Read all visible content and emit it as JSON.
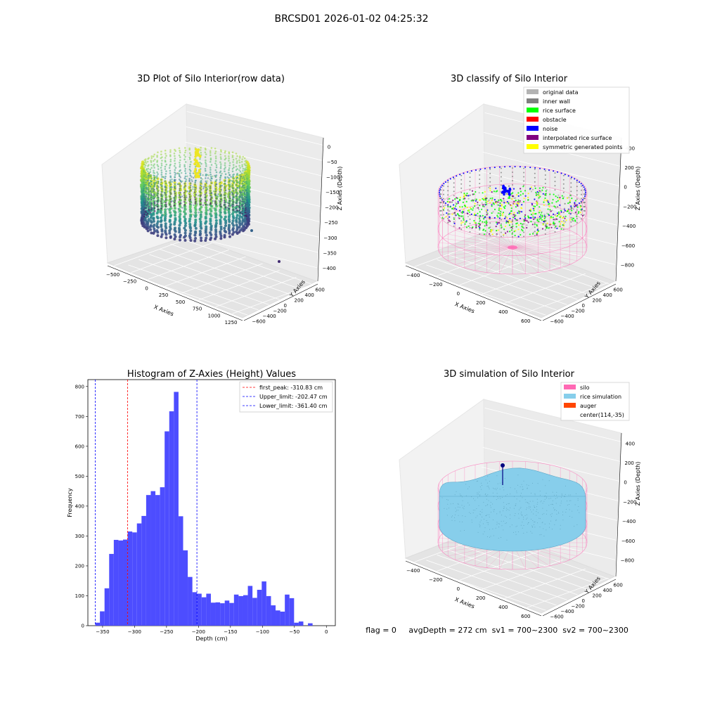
{
  "figure": {
    "suptitle": "BRCSD01 2026-01-02 04:25:32",
    "footer": "flag = 0     avgDepth = 272 cm  sv1 = 700~2300  sv2 = 700~2300"
  },
  "colors": {
    "hist_bar": "#4d4dff",
    "peak_line": "#ff0000",
    "limit_line": "#0000ff",
    "viridis_dark": "#440154",
    "viridis_mid": "#21918c",
    "viridis_light": "#bddf26",
    "silo_pink": "#ff69b4",
    "rice_sky": "#87ceeb",
    "noise_blue": "#0000ff",
    "rice_green": "#00ff00"
  },
  "chart_data": [
    {
      "type": "scatter",
      "title": "3D Plot of Silo Interior(row data)",
      "projection": "3d",
      "xlabel": "X Axies",
      "ylabel": "Y Axies",
      "zlabel": "Z Axies (Depth)",
      "x_ticks": [
        "−500",
        "−250",
        "0",
        "250",
        "500",
        "750",
        "1000",
        "1250"
      ],
      "y_ticks": [
        "−600",
        "−400",
        "−200",
        "0",
        "200",
        "400",
        "600"
      ],
      "z_ticks": [
        "0",
        "−50",
        "−100",
        "−150",
        "−200",
        "−250",
        "−300",
        "−350",
        "−400"
      ],
      "xlim": [
        -600,
        1300
      ],
      "ylim": [
        -650,
        650
      ],
      "zlim": [
        -420,
        10
      ],
      "colormap": "viridis",
      "grid": true,
      "outliers": [
        {
          "x": 1000,
          "y": 0,
          "z": -380
        },
        {
          "x": 1250,
          "y": 400,
          "z": -350
        }
      ]
    },
    {
      "type": "scatter",
      "title": "3D classify of Silo Interior",
      "projection": "3d",
      "xlabel": "X Axies",
      "ylabel": "Y Axies",
      "zlabel": "Z Axies (Depth)",
      "x_ticks": [
        "−400",
        "−200",
        "0",
        "200",
        "400",
        "600"
      ],
      "y_ticks": [
        "−600",
        "−400",
        "−200",
        "0",
        "200",
        "400",
        "600"
      ],
      "z_ticks": [
        "400",
        "200",
        "0",
        "−200",
        "−400",
        "−600",
        "−800"
      ],
      "grid": true,
      "legend_position": "top-right",
      "legend": [
        {
          "label": "original data",
          "color": "#b3b3b3"
        },
        {
          "label": "inner wall",
          "color": "#808080"
        },
        {
          "label": "rice surface",
          "color": "#00ff00"
        },
        {
          "label": "obstacle",
          "color": "#ff0000"
        },
        {
          "label": "noise",
          "color": "#0000ff"
        },
        {
          "label": "interpolated rice surface",
          "color": "#800080"
        },
        {
          "label": "symmetric generated points",
          "color": "#ffff00"
        }
      ]
    },
    {
      "type": "bar",
      "title": "Histogram of Z-Axies (Height) Values",
      "xlabel": "Depth (cm)",
      "ylabel": "Frequency",
      "xlim": [
        -373,
        14
      ],
      "ylim": [
        0,
        823
      ],
      "x_ticks": [
        -350,
        -300,
        -250,
        -200,
        -150,
        -100,
        -50,
        0
      ],
      "x_tick_labels": [
        "−350",
        "−300",
        "−250",
        "−200",
        "−150",
        "−100",
        "−50",
        "0"
      ],
      "y_ticks": [
        0,
        100,
        200,
        300,
        400,
        500,
        600,
        700,
        800
      ],
      "bin_start": -361.4,
      "bin_width": 7.23,
      "values": [
        10,
        48,
        125,
        240,
        287,
        285,
        288,
        315,
        312,
        342,
        367,
        437,
        450,
        437,
        463,
        650,
        717,
        782,
        366,
        252,
        163,
        112,
        107,
        95,
        107,
        77,
        78,
        75,
        84,
        76,
        104,
        99,
        102,
        133,
        93,
        120,
        148,
        99,
        68,
        51,
        47,
        104,
        92,
        10,
        14,
        0,
        8
      ],
      "lines": [
        {
          "label": "first_peak: -310.83 cm",
          "x": -310.83,
          "color": "#ff0000"
        },
        {
          "label": "Upper_limit: -202.47 cm",
          "x": -202.47,
          "color": "#0000ff"
        },
        {
          "label": "Lower_limit: -361.40 cm",
          "x": -361.4,
          "color": "#0000ff"
        }
      ],
      "legend_position": "top-right",
      "grid": false
    },
    {
      "type": "scatter",
      "title": "3D simulation of Silo Interior",
      "projection": "3d",
      "xlabel": "X Axies",
      "ylabel": "Y Axies",
      "zlabel": "Z Axies (Depth)",
      "x_ticks": [
        "−400",
        "−200",
        "0",
        "200",
        "400",
        "600"
      ],
      "y_ticks": [
        "−600",
        "−400",
        "−200",
        "0",
        "200",
        "400",
        "600"
      ],
      "z_ticks": [
        "400",
        "200",
        "0",
        "−200",
        "−400",
        "−600",
        "−800"
      ],
      "grid": true,
      "legend_position": "top-right",
      "legend": [
        {
          "label": "silo",
          "color": "#ff69b4"
        },
        {
          "label": "rice simulation",
          "color": "#87ceeb"
        },
        {
          "label": "auger",
          "color": "#ff4500"
        },
        {
          "label": "center(114,-35)",
          "color": ""
        }
      ]
    }
  ]
}
